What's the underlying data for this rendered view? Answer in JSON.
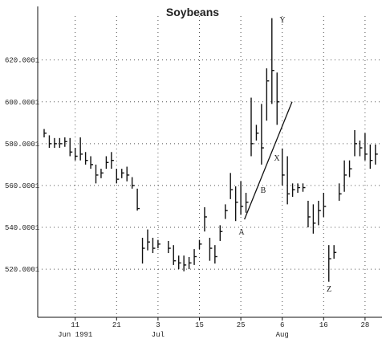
{
  "chart_data": {
    "type": "hlc",
    "title": "Soybeans",
    "categories": [
      null,
      null,
      null,
      null,
      null,
      null,
      "11",
      null,
      null,
      null,
      null,
      null,
      null,
      null,
      "21",
      null,
      null,
      null,
      null,
      null,
      null,
      null,
      "3",
      null,
      null,
      null,
      null,
      null,
      null,
      null,
      "15",
      null,
      null,
      null,
      null,
      null,
      null,
      null,
      "25",
      null,
      null,
      null,
      null,
      null,
      null,
      null,
      "6",
      null,
      null,
      null,
      null,
      null,
      null,
      null,
      "16",
      null,
      null,
      null,
      null,
      null,
      null,
      null,
      "28",
      null,
      null
    ],
    "category_groups": [
      null,
      null,
      null,
      null,
      null,
      null,
      "Jun 1991",
      null,
      null,
      null,
      null,
      null,
      null,
      null,
      null,
      null,
      null,
      null,
      null,
      null,
      null,
      null,
      "Jul",
      null,
      null,
      null,
      null,
      null,
      null,
      null,
      null,
      null,
      null,
      null,
      null,
      null,
      null,
      null,
      null,
      null,
      null,
      null,
      null,
      null,
      null,
      null,
      "Aug",
      null,
      null,
      null,
      null,
      null,
      null,
      null,
      null,
      null,
      null,
      null,
      null,
      null,
      null,
      null,
      null,
      null,
      null
    ],
    "high": [
      587,
      584,
      582.7,
      582.7,
      583,
      582.7,
      578,
      583,
      576,
      574,
      570,
      568,
      574,
      576,
      568,
      568,
      569,
      564,
      558.5,
      535,
      539,
      535,
      534,
      null,
      533.5,
      531.5,
      526.5,
      526.5,
      525.8,
      529.6,
      534,
      549.6,
      535,
      531.5,
      541,
      551,
      566,
      559.6,
      562,
      556.5,
      602,
      589,
      599,
      616,
      640,
      614,
      577.7,
      574,
      561,
      561,
      561,
      552.7,
      551,
      552.7,
      556.5,
      531.5,
      531.5,
      561,
      572,
      572,
      586.5,
      581.5,
      585,
      579.6,
      579.6
    ],
    "low": [
      583,
      578,
      578,
      578,
      578.5,
      574,
      572,
      572,
      570,
      568,
      561,
      563.5,
      568,
      568,
      561,
      563.5,
      562,
      558.5,
      548,
      522.7,
      529,
      527.7,
      530,
      null,
      527.7,
      522,
      520,
      519,
      520,
      522,
      529.6,
      538,
      524,
      522.7,
      533.5,
      544,
      553.5,
      543,
      546,
      547,
      574,
      581.5,
      570,
      591,
      599,
      589,
      560,
      551,
      554.6,
      556.5,
      557,
      540,
      537,
      541,
      545,
      514,
      525,
      552.7,
      557,
      564,
      574,
      574,
      572,
      568,
      570
    ],
    "close": [
      585,
      580,
      580,
      580,
      581,
      576,
      574,
      575,
      572,
      570,
      565,
      566,
      571,
      572,
      563,
      566,
      565,
      560,
      549,
      530,
      533,
      530,
      532,
      null,
      530,
      524,
      523,
      522,
      523,
      526,
      532,
      545,
      530,
      526,
      538,
      548,
      558,
      552,
      550,
      552,
      580,
      585,
      578,
      610,
      615,
      600,
      565,
      556,
      558,
      559,
      559,
      545,
      542,
      548,
      550,
      525,
      528,
      556,
      565,
      568,
      580,
      578,
      575,
      572,
      575
    ],
    "color": "#111111",
    "ylim": [
      497,
      641
    ],
    "yticks": [
      520.0001,
      540.0001,
      560.0001,
      580.0001,
      600.0001,
      620.0001
    ],
    "grid": true,
    "trendline": {
      "x": [
        38.7,
        47.9
      ],
      "y": [
        543.8,
        600
      ]
    },
    "annotations": [
      "A",
      "B",
      "X",
      "Y",
      "Z"
    ]
  }
}
